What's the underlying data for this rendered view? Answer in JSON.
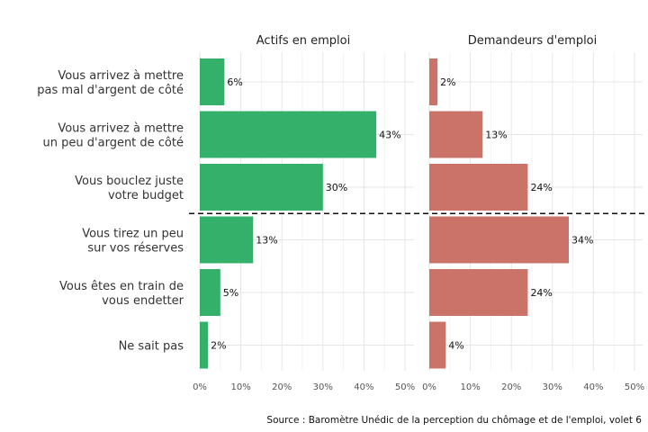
{
  "chart_data": {
    "type": "bar",
    "orientation": "horizontal",
    "categories": [
      [
        "Vous arrivez à mettre",
        "pas mal d'argent de côté"
      ],
      [
        "Vous arrivez à mettre",
        "un peu d'argent de côté"
      ],
      [
        "Vous bouclez juste",
        "votre budget"
      ],
      [
        "Vous tirez un peu",
        "sur vos réserves"
      ],
      [
        "Vous êtes en train de",
        "vous endetter"
      ],
      [
        "Ne sait pas"
      ]
    ],
    "series": [
      {
        "name": "Actifs en emploi",
        "color": "#34b06a",
        "values": [
          6,
          43,
          30,
          13,
          5,
          2
        ],
        "labels": [
          "6%",
          "43%",
          "30%",
          "13%",
          "5%",
          "2%"
        ]
      },
      {
        "name": "Demandeurs d'emploi",
        "color": "#cb7369",
        "values": [
          2,
          13,
          24,
          34,
          24,
          4
        ],
        "labels": [
          "2%",
          "13%",
          "24%",
          "34%",
          "24%",
          "4%"
        ]
      }
    ],
    "xlim": [
      0,
      50
    ],
    "xticks": [
      0,
      10,
      20,
      30,
      40,
      50
    ],
    "xtick_labels": [
      "0%",
      "10%",
      "20%",
      "30%",
      "40%",
      "50%"
    ],
    "separator": {
      "style": "dashed",
      "after_category_index": 2
    },
    "grid": true,
    "legend": "none",
    "source": "Source : Baromètre Unédic de la perception du chômage et de l'emploi, volet 6"
  }
}
